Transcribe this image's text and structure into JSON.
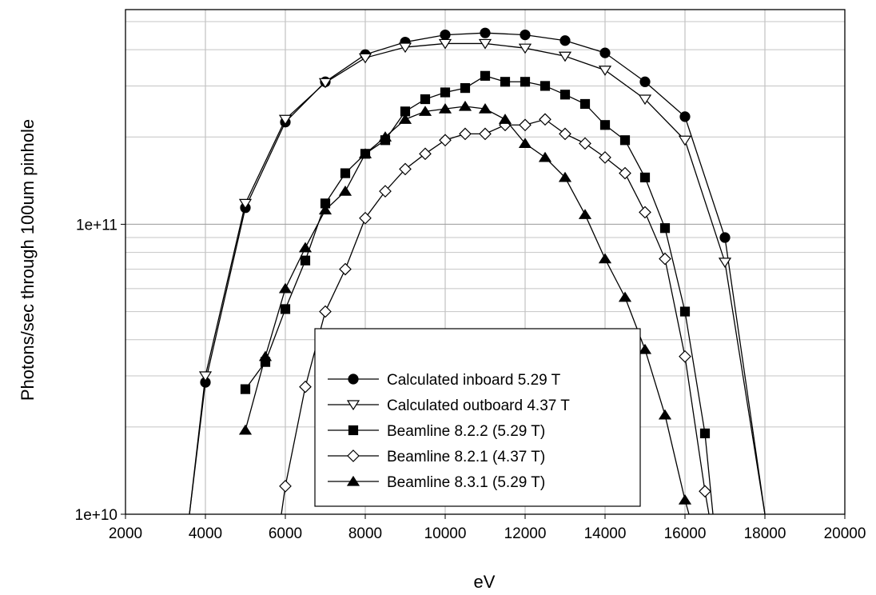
{
  "chart_data": {
    "type": "line",
    "title": "",
    "xlabel": "eV",
    "ylabel": "Photons/sec through 100um pinhole",
    "xlim": [
      2000,
      20000
    ],
    "ylim": [
      10000000000.0,
      550000000000.0
    ],
    "yscale": "log",
    "xticks": [
      "2000",
      "4000",
      "6000",
      "8000",
      "10000",
      "12000",
      "14000",
      "16000",
      "18000",
      "20000"
    ],
    "yticks": [
      {
        "value": 100000000000.0,
        "label": "1e+11"
      },
      {
        "value": 10000000000.0,
        "label": "1e+10"
      }
    ],
    "grid": true,
    "legend_position": "center-bottom",
    "series": [
      {
        "name": "Calculated inboard 5.29 T",
        "marker": "circle-filled",
        "line_to": [
          3600,
          10000000000.0
        ],
        "line_end": [
          18000,
          10000000000.0
        ],
        "x": [
          4000,
          5000,
          6000,
          7000,
          8000,
          9000,
          10000,
          11000,
          12000,
          13000,
          14000,
          15000,
          16000,
          17000
        ],
        "y": [
          28500000000.0,
          114000000000.0,
          225000000000.0,
          310000000000.0,
          385000000000.0,
          425000000000.0,
          450000000000.0,
          457000000000.0,
          450000000000.0,
          430000000000.0,
          390000000000.0,
          310000000000.0,
          235000000000.0,
          90000000000.0
        ]
      },
      {
        "name": "Calculated outboard 4.37 T",
        "marker": "triangle-down-open",
        "line_to": [
          3600,
          10000000000.0
        ],
        "line_end": [
          18000,
          10000000000.0
        ],
        "x": [
          4000,
          5000,
          6000,
          7000,
          8000,
          9000,
          10000,
          11000,
          12000,
          13000,
          14000,
          15000,
          16000,
          17000
        ],
        "y": [
          30000000000.0,
          118000000000.0,
          230000000000.0,
          308000000000.0,
          375000000000.0,
          408000000000.0,
          420000000000.0,
          420000000000.0,
          405000000000.0,
          380000000000.0,
          340000000000.0,
          270000000000.0,
          195000000000.0,
          74000000000.0
        ]
      },
      {
        "name": "Beamline 8.2.2 (5.29 T)",
        "marker": "square-filled",
        "line_end": [
          16700,
          10000000000.0
        ],
        "x": [
          5000,
          5500,
          6000,
          6500,
          7000,
          7500,
          8000,
          8500,
          9000,
          9500,
          10000,
          10500,
          11000,
          11500,
          12000,
          12500,
          13000,
          13500,
          14000,
          14500,
          15000,
          15500,
          16000,
          16500
        ],
        "y": [
          27000000000.0,
          33500000000.0,
          51000000000.0,
          75000000000.0,
          118000000000.0,
          150000000000.0,
          175000000000.0,
          195000000000.0,
          245000000000.0,
          270000000000.0,
          285000000000.0,
          295000000000.0,
          325000000000.0,
          310000000000.0,
          310000000000.0,
          300000000000.0,
          280000000000.0,
          260000000000.0,
          220000000000.0,
          195000000000.0,
          145000000000.0,
          97000000000.0,
          50000000000.0,
          19000000000.0
        ]
      },
      {
        "name": "Beamline 8.2.1 (4.37 T)",
        "marker": "diamond-open",
        "line_to": [
          5900,
          10000000000.0
        ],
        "line_end": [
          16600,
          10000000000.0
        ],
        "x": [
          6000,
          6500,
          7000,
          7500,
          8000,
          8500,
          9000,
          9500,
          10000,
          10500,
          11000,
          11500,
          12000,
          12500,
          13000,
          13500,
          14000,
          14500,
          15000,
          15500,
          16000,
          16500
        ],
        "y": [
          12500000000.0,
          27500000000.0,
          50000000000.0,
          70000000000.0,
          105000000000.0,
          130000000000.0,
          155000000000.0,
          175000000000.0,
          195000000000.0,
          205000000000.0,
          205000000000.0,
          220000000000.0,
          220000000000.0,
          230000000000.0,
          205000000000.0,
          190000000000.0,
          170000000000.0,
          150000000000.0,
          110000000000.0,
          76000000000.0,
          35000000000.0,
          12000000000.0
        ]
      },
      {
        "name": "Beamline 8.3.1 (5.29 T)",
        "marker": "triangle-up-filled",
        "line_end": [
          16100,
          10000000000.0
        ],
        "x": [
          5000,
          5500,
          6000,
          6500,
          7000,
          7500,
          8000,
          8500,
          9000,
          9500,
          10000,
          10500,
          11000,
          11500,
          12000,
          12500,
          13000,
          13500,
          14000,
          14500,
          15000,
          15500,
          16000
        ],
        "y": [
          19500000000.0,
          35000000000.0,
          60000000000.0,
          83000000000.0,
          112000000000.0,
          130000000000.0,
          175000000000.0,
          200000000000.0,
          230000000000.0,
          245000000000.0,
          250000000000.0,
          255000000000.0,
          250000000000.0,
          230000000000.0,
          190000000000.0,
          170000000000.0,
          145000000000.0,
          108000000000.0,
          76000000000.0,
          56000000000.0,
          37000000000.0,
          22000000000.0,
          11200000000.0
        ]
      }
    ]
  }
}
